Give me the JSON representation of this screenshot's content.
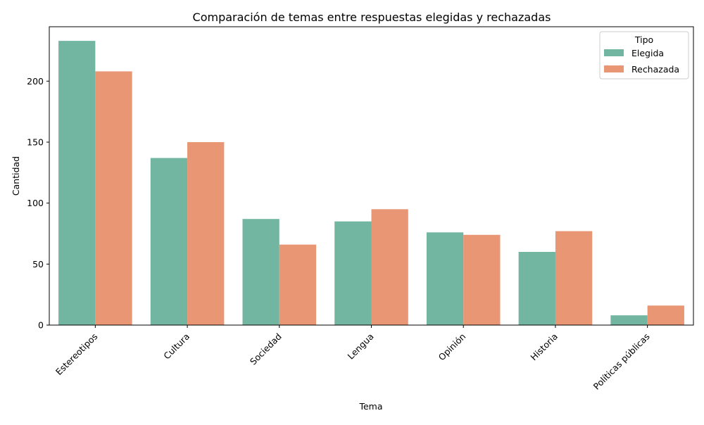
{
  "chart_data": {
    "type": "bar",
    "title": "Comparación de temas entre respuestas elegidas y rechazadas",
    "xlabel": "Tema",
    "ylabel": "Cantidad",
    "categories": [
      "Estereotipos",
      "Cultura",
      "Sociedad",
      "Lengua",
      "Opinión",
      "Historia",
      "Políticas públicas"
    ],
    "series": [
      {
        "name": "Elegida",
        "color": "#72b6a1",
        "values": [
          233,
          137,
          87,
          85,
          76,
          60,
          8
        ]
      },
      {
        "name": "Rechazada",
        "color": "#e99675",
        "values": [
          208,
          150,
          66,
          95,
          74,
          77,
          16
        ]
      }
    ],
    "ylim": [
      0,
      244.6
    ],
    "yticks": [
      0,
      50,
      100,
      150,
      200
    ],
    "legend": {
      "title": "Tipo",
      "position": "top-right"
    },
    "grid": false
  }
}
